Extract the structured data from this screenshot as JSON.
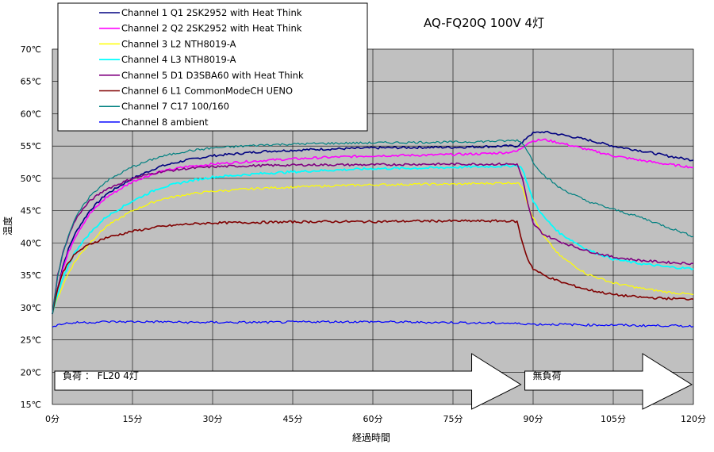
{
  "chart_data": {
    "type": "line",
    "title": "AQ-FQ20Q 100V 4灯",
    "xlabel": "経過時間",
    "ylabel": "温度",
    "xlim": [
      0,
      120
    ],
    "ylim": [
      15,
      70
    ],
    "x_ticks": [
      0,
      15,
      30,
      45,
      60,
      75,
      90,
      105,
      120
    ],
    "x_tick_labels": [
      "0分",
      "15分",
      "30分",
      "45分",
      "60分",
      "75分",
      "90分",
      "105分",
      "120分"
    ],
    "y_ticks": [
      15,
      20,
      25,
      30,
      35,
      40,
      45,
      50,
      55,
      60,
      65,
      70
    ],
    "y_tick_labels": [
      "15℃",
      "20℃",
      "25℃",
      "30℃",
      "35℃",
      "40℃",
      "45℃",
      "50℃",
      "55℃",
      "60℃",
      "65℃",
      "70℃"
    ],
    "grid": true,
    "legend_position": "top-left",
    "plot_background": "#c0c0c0",
    "annotations": [
      {
        "text": "負荷 ： FL20 4灯",
        "x_start": 0,
        "x_end": 88
      },
      {
        "text": "無負荷",
        "x_start": 88,
        "x_end": 120
      }
    ],
    "x": [
      0,
      1,
      2,
      3,
      4,
      5,
      7,
      10,
      15,
      20,
      25,
      30,
      40,
      50,
      60,
      70,
      75,
      80,
      85,
      87,
      88,
      89,
      90,
      92,
      95,
      100,
      105,
      110,
      115,
      120
    ],
    "series": [
      {
        "name": "Channel 1 Q1 2SK2952 with Heat Think",
        "color": "#000080",
        "width": 1.6,
        "values": [
          29,
          33,
          36.5,
          39,
          41,
          42.5,
          45,
          47.5,
          50,
          51.8,
          52.8,
          53.5,
          54.2,
          54.5,
          54.7,
          54.8,
          54.8,
          54.9,
          55,
          55,
          55.5,
          56.5,
          57,
          57.2,
          56.8,
          56,
          55,
          54.3,
          53.5,
          52.8
        ]
      },
      {
        "name": "Channel 2 Q2 2SK2952 with Heat Think",
        "color": "#ff00ff",
        "width": 1.6,
        "values": [
          29,
          33,
          36,
          38.5,
          40.5,
          42,
          44.5,
          47,
          49.5,
          51,
          51.8,
          52.2,
          52.8,
          53.2,
          53.5,
          53.6,
          53.7,
          53.8,
          54,
          54.2,
          54.8,
          55.5,
          55.8,
          56,
          55.5,
          54.5,
          53.5,
          52.8,
          52.2,
          51.7
        ]
      },
      {
        "name": "Channel 3 L2 NTH8019-A",
        "color": "#ffff00",
        "width": 1.2,
        "values": [
          29,
          31.5,
          33.5,
          35.3,
          36.8,
          38,
          40,
          42.5,
          45,
          46.7,
          47.5,
          48,
          48.5,
          48.8,
          49,
          49.1,
          49.1,
          49.2,
          49.3,
          49.3,
          48.7,
          46,
          44,
          41,
          38,
          35.2,
          33.8,
          33,
          32.4,
          32
        ]
      },
      {
        "name": "Channel 4 L3 NTH8019-A",
        "color": "#00ffff",
        "width": 1.8,
        "values": [
          29,
          32,
          34.5,
          36.5,
          38.2,
          39.5,
          41.5,
          44,
          46.5,
          48.5,
          49.5,
          50.2,
          50.8,
          51.2,
          51.5,
          51.6,
          51.7,
          51.8,
          51.9,
          52,
          51.5,
          49,
          46.5,
          44,
          41.5,
          39,
          37.5,
          36.8,
          36.3,
          36
        ]
      },
      {
        "name": "Channel 5 D1 D3SBA60 with Heat Think",
        "color": "#800080",
        "width": 1.6,
        "values": [
          29,
          35,
          38.5,
          41,
          43,
          44.5,
          46.5,
          48.3,
          50,
          51,
          51.5,
          51.8,
          52,
          52.1,
          52.1,
          52.2,
          52.2,
          52.2,
          52.2,
          52.2,
          50,
          46,
          43,
          41.3,
          40.2,
          38.8,
          37.8,
          37.3,
          37,
          36.8
        ]
      },
      {
        "name": "Channel 6 L1 CommonModeCH UENO",
        "color": "#800000",
        "width": 1.6,
        "values": [
          29,
          33,
          35.5,
          37,
          38,
          38.8,
          39.8,
          40.8,
          41.8,
          42.5,
          42.9,
          43.1,
          43.2,
          43.3,
          43.3,
          43.4,
          43.4,
          43.4,
          43.4,
          43.3,
          40,
          37.5,
          36,
          35,
          34,
          32.8,
          32,
          31.6,
          31.4,
          31.3
        ]
      },
      {
        "name": "Channel 7 C17 100/160",
        "color": "#008080",
        "width": 1.2,
        "values": [
          29,
          35,
          38.5,
          41.2,
          43.2,
          44.8,
          47.2,
          49.5,
          51.8,
          53.3,
          54.2,
          54.7,
          55.2,
          55.4,
          55.5,
          55.6,
          55.6,
          55.7,
          55.8,
          55.9,
          55.5,
          54.2,
          52.5,
          50.5,
          48.5,
          46.5,
          45.2,
          44,
          42.5,
          41
        ]
      },
      {
        "name": "Channel 8 ambient",
        "color": "#0000ff",
        "width": 1.2,
        "values": [
          27,
          27.3,
          27.5,
          27.6,
          27.6,
          27.7,
          27.7,
          27.8,
          27.8,
          27.8,
          27.7,
          27.7,
          27.7,
          27.8,
          27.8,
          27.7,
          27.7,
          27.6,
          27.6,
          27.5,
          27.5,
          27.5,
          27.4,
          27.4,
          27.4,
          27.3,
          27.3,
          27.2,
          27.2,
          27.1
        ]
      }
    ]
  }
}
